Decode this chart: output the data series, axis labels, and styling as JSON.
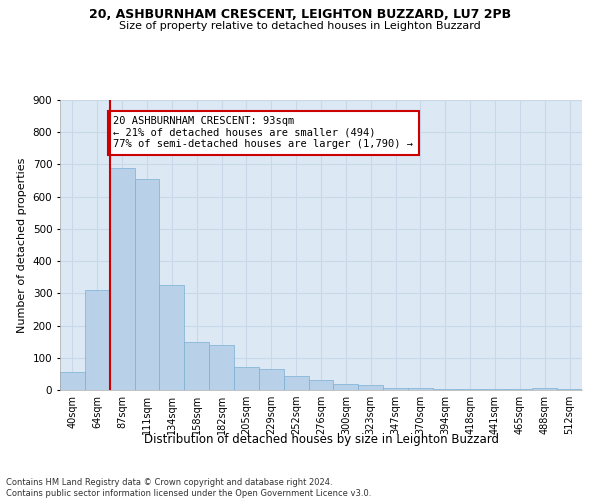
{
  "title_line1": "20, ASHBURNHAM CRESCENT, LEIGHTON BUZZARD, LU7 2PB",
  "title_line2": "Size of property relative to detached houses in Leighton Buzzard",
  "xlabel": "Distribution of detached houses by size in Leighton Buzzard",
  "ylabel": "Number of detached properties",
  "footnote": "Contains HM Land Registry data © Crown copyright and database right 2024.\nContains public sector information licensed under the Open Government Licence v3.0.",
  "bar_labels": [
    "40sqm",
    "64sqm",
    "87sqm",
    "111sqm",
    "134sqm",
    "158sqm",
    "182sqm",
    "205sqm",
    "229sqm",
    "252sqm",
    "276sqm",
    "300sqm",
    "323sqm",
    "347sqm",
    "370sqm",
    "394sqm",
    "418sqm",
    "441sqm",
    "465sqm",
    "488sqm",
    "512sqm"
  ],
  "bar_values": [
    55,
    310,
    690,
    655,
    325,
    150,
    140,
    70,
    65,
    45,
    30,
    20,
    15,
    5,
    5,
    3,
    2,
    2,
    2,
    5,
    2
  ],
  "bar_color": "#b8d0e8",
  "bar_edge_color": "#7aafd4",
  "vline_index": 2,
  "vline_color": "#cc0000",
  "annotation_text": "20 ASHBURNHAM CRESCENT: 93sqm\n← 21% of detached houses are smaller (494)\n77% of semi-detached houses are larger (1,790) →",
  "annotation_box_color": "#cc0000",
  "annotation_box_fill": "#ffffff",
  "ylim": [
    0,
    900
  ],
  "yticks": [
    0,
    100,
    200,
    300,
    400,
    500,
    600,
    700,
    800,
    900
  ],
  "grid_color": "#c8d8e8",
  "bg_color": "#dce9f5",
  "fig_bg_color": "#ffffff",
  "title1_fontsize": 9,
  "title2_fontsize": 8
}
